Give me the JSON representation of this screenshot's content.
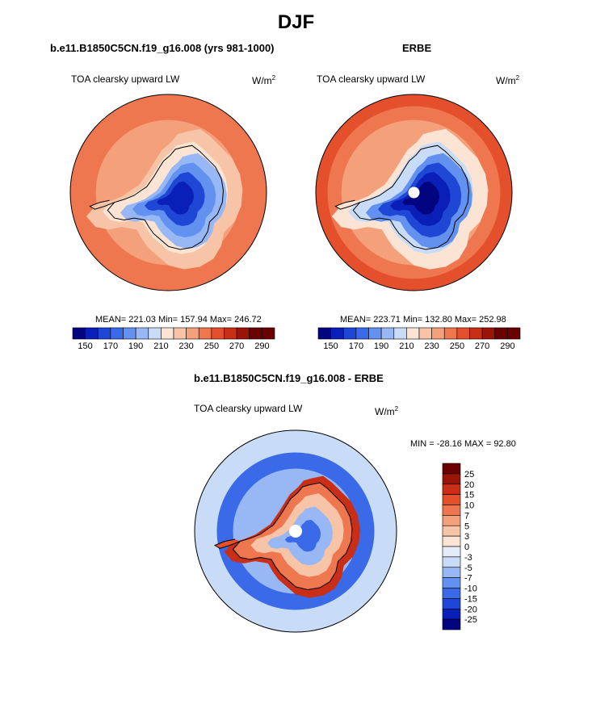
{
  "page": {
    "title": "DJF",
    "model_run_title": "b.e11.B1850C5CN.f19_g16.008 (yrs 981-1000)",
    "obs_title": "ERBE",
    "diff_title": "b.e11.B1850C5CN.f19_g16.008 - ERBE"
  },
  "colors": {
    "seq_palette": [
      "#03047f",
      "#0a1fb8",
      "#1f47d6",
      "#3a6ae8",
      "#6391ef",
      "#98b8f5",
      "#c9dcf7",
      "#fbe4d4",
      "#f8c4a8",
      "#f4a07b",
      "#ee7750",
      "#e4502c",
      "#c92e16",
      "#9b1408",
      "#6b0000"
    ],
    "diff_palette": [
      "#03047f",
      "#0a1fb8",
      "#1f47d6",
      "#3a6ae8",
      "#6391ef",
      "#98b8f5",
      "#c9dcf7",
      "#e4ecf8",
      "#fbe4d4",
      "#f8c4a8",
      "#f4a07b",
      "#ee7750",
      "#e4502c",
      "#c92e16",
      "#9b1408",
      "#6b0000"
    ],
    "land_outline": "#000000"
  },
  "chart_data": [
    {
      "type": "heatmap",
      "projection": "south-polar-stereographic",
      "title": "b.e11.B1850C5CN.f19_g16.008 (yrs 981-1000)",
      "variable_label": "TOA clearsky upward LW",
      "units_base": "W/m",
      "units_exp": "2",
      "stats": {
        "text": "MEAN= 221.03  Min= 157.94  Max= 246.72",
        "mean": 221.03,
        "min": 157.94,
        "max": 246.72
      },
      "colorbar": {
        "levels": [
          150,
          160,
          170,
          180,
          190,
          200,
          210,
          220,
          230,
          240,
          250,
          260,
          270,
          280,
          290
        ],
        "tick_labels": [
          "150",
          "170",
          "190",
          "210",
          "230",
          "250",
          "270",
          "290"
        ],
        "orientation": "horizontal"
      },
      "field": {
        "polar_value": 150,
        "coast_value": 210,
        "open_ocean_value": 236,
        "midlat_value": 246,
        "has_pole_hole": false
      }
    },
    {
      "type": "heatmap",
      "projection": "south-polar-stereographic",
      "title": "ERBE",
      "variable_label": "TOA clearsky upward LW",
      "units_base": "W/m",
      "units_exp": "2",
      "stats": {
        "text": "MEAN= 223.71  Min= 132.80  Max= 252.98",
        "mean": 223.71,
        "min": 132.8,
        "max": 252.98
      },
      "colorbar": {
        "levels": [
          150,
          160,
          170,
          180,
          190,
          200,
          210,
          220,
          230,
          240,
          250,
          260,
          270,
          280,
          290
        ],
        "tick_labels": [
          "150",
          "170",
          "190",
          "210",
          "230",
          "250",
          "270",
          "290"
        ],
        "orientation": "horizontal"
      },
      "field": {
        "polar_value": 135,
        "coast_value": 200,
        "open_ocean_value": 238,
        "midlat_value": 252,
        "has_pole_hole": true
      }
    },
    {
      "type": "heatmap",
      "projection": "south-polar-stereographic",
      "title": "b.e11.B1850C5CN.f19_g16.008 - ERBE",
      "variable_label": "TOA clearsky upward LW",
      "units_base": "W/m",
      "units_exp": "2",
      "stats": {
        "text": "MIN = -28.16 MAX =  92.80",
        "min": -28.16,
        "max": 92.8
      },
      "colorbar": {
        "levels": [
          -25,
          -20,
          -15,
          -10,
          -7,
          -5,
          -3,
          0,
          3,
          5,
          7,
          10,
          15,
          20,
          25
        ],
        "tick_labels": [
          "25",
          "20",
          "15",
          "10",
          "7",
          "5",
          "3",
          "0",
          "-3",
          "-5",
          "-7",
          "-10",
          "-15",
          "-20",
          "-25"
        ],
        "orientation": "vertical"
      },
      "field": {
        "interior_value": -6,
        "coast_value": 8,
        "sea_ice_value": -12,
        "open_ocean_value": -4,
        "has_pole_hole": true
      }
    }
  ]
}
